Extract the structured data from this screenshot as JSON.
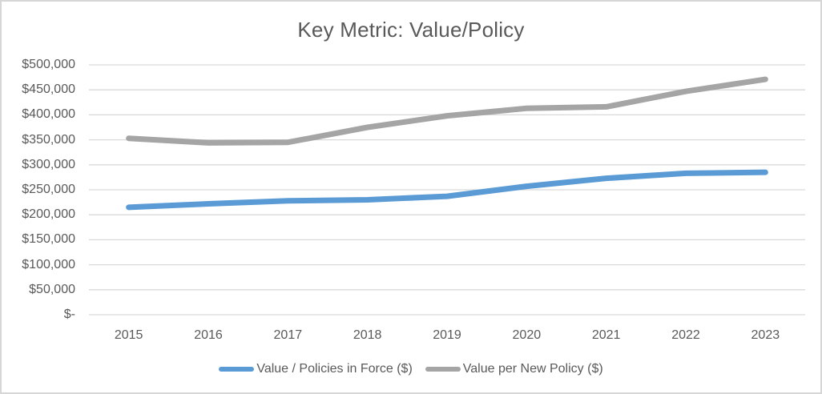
{
  "chart_data": {
    "type": "line",
    "title": "Key Metric: Value/Policy",
    "categories": [
      "2015",
      "2016",
      "2017",
      "2018",
      "2019",
      "2020",
      "2021",
      "2022",
      "2023"
    ],
    "series": [
      {
        "name": "Value / Policies in Force ($)",
        "color": "#5b9bd5",
        "values": [
          215000,
          222000,
          228000,
          230000,
          237000,
          257000,
          273000,
          283000,
          285000
        ]
      },
      {
        "name": "Value per New Policy ($)",
        "color": "#a5a5a5",
        "values": [
          353000,
          344000,
          345000,
          375000,
          398000,
          413000,
          416000,
          447000,
          471000
        ]
      }
    ],
    "xlabel": "",
    "ylabel": "",
    "ylim": [
      0,
      500000
    ],
    "y_ticks": [
      {
        "value": 500000,
        "label": "$500,000"
      },
      {
        "value": 450000,
        "label": "$450,000"
      },
      {
        "value": 400000,
        "label": "$400,000"
      },
      {
        "value": 350000,
        "label": "$350,000"
      },
      {
        "value": 300000,
        "label": "$300,000"
      },
      {
        "value": 250000,
        "label": "$250,000"
      },
      {
        "value": 200000,
        "label": "$200,000"
      },
      {
        "value": 150000,
        "label": "$150,000"
      },
      {
        "value": 100000,
        "label": "$100,000"
      },
      {
        "value": 50000,
        "label": "$50,000"
      },
      {
        "value": 0,
        "label": "$-"
      }
    ],
    "grid": true,
    "legend_position": "bottom",
    "gridline_color": "#d9d9d9",
    "text_color": "#595959"
  }
}
